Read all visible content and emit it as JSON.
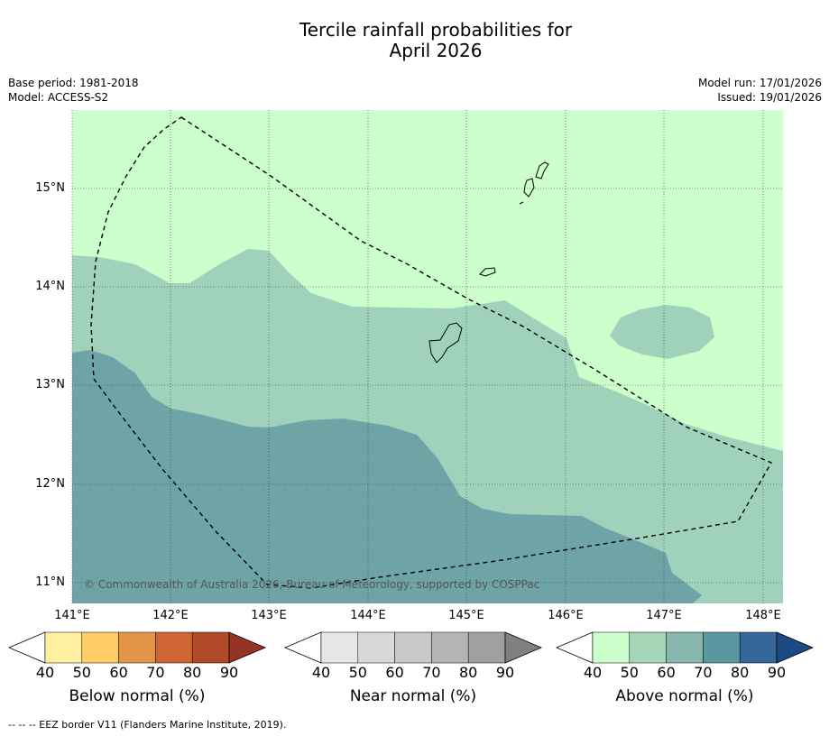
{
  "title_line1": "Tercile rainfall probabilities for",
  "title_line2": "April 2026",
  "meta_left": [
    "Base period: 1981-2018",
    "Model: ACCESS-S2"
  ],
  "meta_right": [
    "Model run: 17/01/2026",
    "Issued: 19/01/2026"
  ],
  "lat_labels": [
    "15°N",
    "14°N",
    "13°N",
    "12°N",
    "11°N"
  ],
  "lon_labels": [
    "141°E",
    "142°E",
    "143°E",
    "144°E",
    "145°E",
    "146°E",
    "147°E",
    "148°E"
  ],
  "credit": "© Commonwealth of Australia 2026, Bureau of Meteorology, supported by COSPPac",
  "colorbars": [
    {
      "title": "Below normal (%)",
      "ticks": [
        "40",
        "50",
        "60",
        "70",
        "80",
        "90"
      ],
      "colors": [
        "#ffffff",
        "#fff0a0",
        "#ffcc66",
        "#e39548",
        "#cf6533",
        "#b04a28",
        "#953422"
      ]
    },
    {
      "title": "Near normal (%)",
      "ticks": [
        "40",
        "50",
        "60",
        "70",
        "80",
        "90"
      ],
      "colors": [
        "#ffffff",
        "#e6e6e6",
        "#d8d8d8",
        "#c8c8c8",
        "#b4b4b4",
        "#a0a0a0",
        "#808080"
      ]
    },
    {
      "title": "Above normal (%)",
      "ticks": [
        "40",
        "50",
        "60",
        "70",
        "80",
        "90"
      ],
      "colors": [
        "#ffffff",
        "#ccffcc",
        "#a6d6b8",
        "#86b6ac",
        "#5a97a0",
        "#36679a",
        "#1a4a84"
      ]
    }
  ],
  "map_colors": {
    "band_40_50": "#ccffcc",
    "band_50_60": "#a0d1ba",
    "band_60_70": "#6fa4a7"
  },
  "footnote": "--  --  -- EEZ border V11 (Flanders Marine Institute, 2019)."
}
